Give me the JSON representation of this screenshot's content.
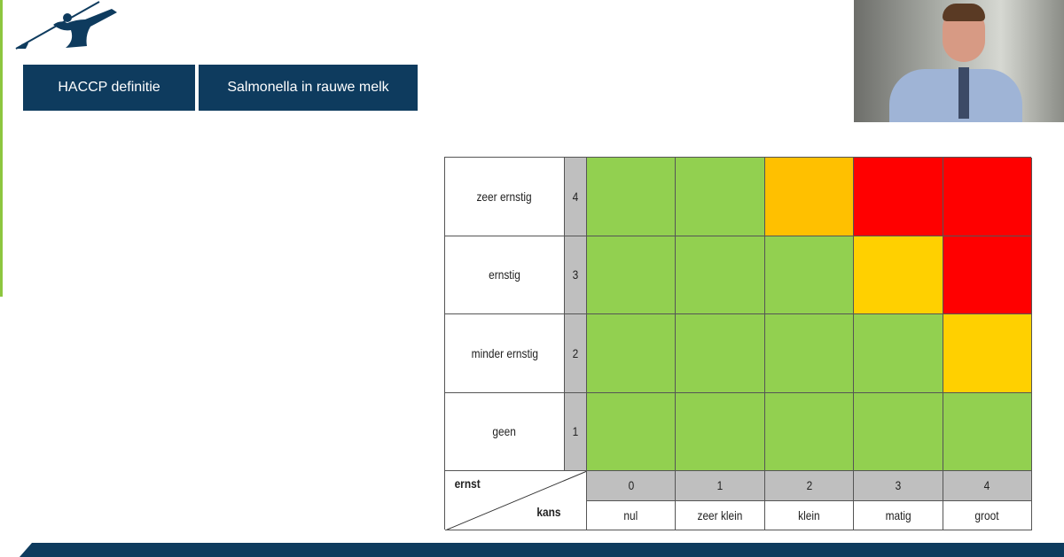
{
  "tabs": [
    "HACCP definitie",
    "Salmonella in rauwe melk"
  ],
  "matrix": {
    "row_axis": "ernst",
    "col_axis": "kans",
    "rows": [
      {
        "label": "zeer ernstig",
        "score": 4,
        "colors": [
          "#92d050",
          "#92d050",
          "#ffc000",
          "#ff0000",
          "#ff0000"
        ]
      },
      {
        "label": "ernstig",
        "score": 3,
        "colors": [
          "#92d050",
          "#92d050",
          "#92d050",
          "#ffd000",
          "#ff0000"
        ]
      },
      {
        "label": "minder ernstig",
        "score": 2,
        "colors": [
          "#92d050",
          "#92d050",
          "#92d050",
          "#92d050",
          "#ffd000"
        ]
      },
      {
        "label": "geen",
        "score": 1,
        "colors": [
          "#92d050",
          "#92d050",
          "#92d050",
          "#92d050",
          "#92d050"
        ]
      }
    ],
    "columns": [
      {
        "score": 0,
        "label": "nul"
      },
      {
        "score": 1,
        "label": "zeer klein"
      },
      {
        "score": 2,
        "label": "klein"
      },
      {
        "score": 3,
        "label": "matig"
      },
      {
        "score": 4,
        "label": "groot"
      }
    ]
  }
}
